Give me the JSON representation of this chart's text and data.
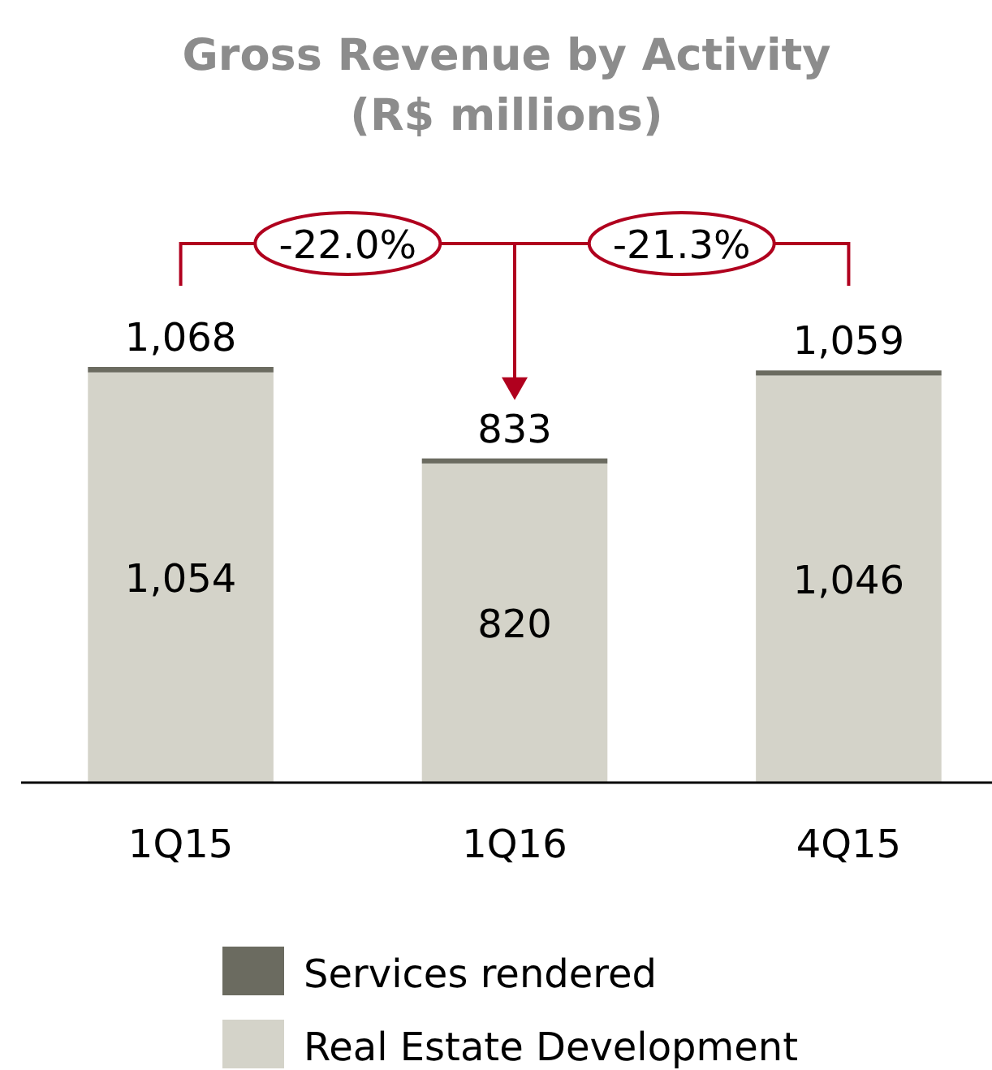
{
  "chart_data": {
    "type": "bar",
    "title": "Gross Revenue by Activity",
    "subtitle": "(R$ millions)",
    "categories": [
      "1Q15",
      "1Q16",
      "4Q15"
    ],
    "stacked": true,
    "series": [
      {
        "name": "Real Estate Development",
        "color": "#d4d3c9",
        "values": [
          1054,
          820,
          1046
        ],
        "value_labels": [
          "1,054",
          "820",
          "1,046"
        ]
      },
      {
        "name": "Services rendered",
        "color": "#6b6b60",
        "values": [
          14,
          13,
          13
        ]
      }
    ],
    "totals": [
      "1,068",
      "833",
      "1,059"
    ],
    "annotations": [
      "-22.0%",
      "-21.3%"
    ],
    "legend": "bottom",
    "grid": false
  }
}
